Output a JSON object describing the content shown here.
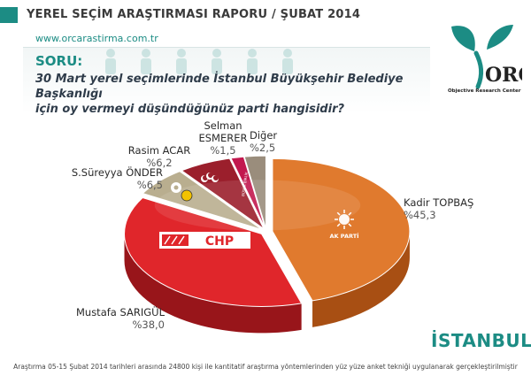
{
  "header": {
    "title": "YEREL SEÇİM ARAŞTIRMASI RAPORU / ŞUBAT 2014",
    "website": "www.orcarastirma.com.tr"
  },
  "question": {
    "label": "SORU:",
    "line1": "30 Mart yerel seçimlerinde İstanbul Büyükşehir Belediye Başkanlığı",
    "line2": "için oy vermeyi düşündüğünüz parti hangisidir?"
  },
  "logo": {
    "text": "ORC",
    "caption": "Objective Research Center"
  },
  "party_logos": {
    "akp": "AK PARTİ",
    "chp": "CHP",
    "bbp": "BÜYÜK BİRLİK"
  },
  "city": "İSTANBUL",
  "footnote": "Araştırma 05-15 Şubat 2014 tarihleri arasında 24800 kişi ile kantitatif araştırma yöntemlerinden yüz yüze anket tekniği uygulanarak gerçekleştirilmiştir",
  "chart_data": {
    "type": "pie",
    "categories": [
      "Kadir TOPBAŞ",
      "Mustafa SARIGÜL",
      "S.Süreyya ÖNDER",
      "Rasim ACAR",
      "Selman ESMERER",
      "Diğer"
    ],
    "values": [
      45.3,
      38.0,
      6.5,
      6.2,
      1.5,
      2.5
    ],
    "value_labels": [
      "%45,3",
      "%38,0",
      "%6,5",
      "%6,2",
      "%1,5",
      "%2,5"
    ],
    "colors": [
      "#e07a2e",
      "#e0262b",
      "#b9ae8f",
      "#9b1f2c",
      "#c2184e",
      "#9a8d7c"
    ],
    "dark_colors": [
      "#a84f13",
      "#98151a",
      "#7f7659",
      "#5e0f18",
      "#7e0f33",
      "#6b6053"
    ]
  }
}
